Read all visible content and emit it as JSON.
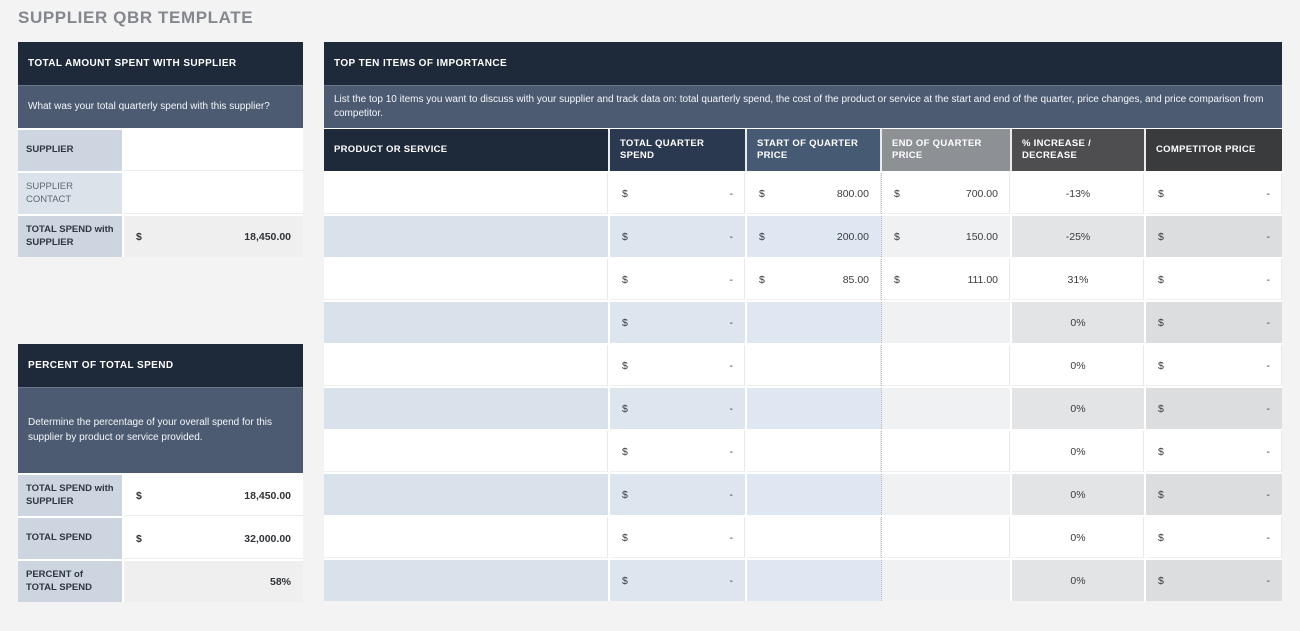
{
  "title": "SUPPLIER QBR TEMPLATE",
  "palette": {
    "header_dark": "#1e2a39",
    "header_navy": "#2b3950",
    "slate_description": "#4d5b72",
    "header_slate": "#475a74",
    "header_gray": "#8d9196",
    "header_darkgray": "#4e4e50",
    "header_charcoal": "#3a3b3d",
    "label_tint": "#cdd6e0",
    "row_blue_tint": "#dde5ef",
    "value_gray": "#efefef"
  },
  "left_top": {
    "header": "TOTAL AMOUNT SPENT WITH SUPPLIER",
    "description": "What was your total quarterly spend with this supplier?",
    "rows": [
      {
        "label": "SUPPLIER",
        "currency": "",
        "value": ""
      },
      {
        "label": "SUPPLIER CONTACT",
        "currency": "",
        "value": ""
      },
      {
        "label": "TOTAL SPEND with SUPPLIER",
        "currency": "$",
        "value": "18,450.00"
      }
    ]
  },
  "left_bottom": {
    "header": "PERCENT OF TOTAL SPEND",
    "description": "Determine the percentage of your overall spend for this supplier by product or service provided.",
    "rows": [
      {
        "label": "TOTAL SPEND with SUPPLIER",
        "currency": "$",
        "value": "18,450.00"
      },
      {
        "label": "TOTAL SPEND",
        "currency": "$",
        "value": "32,000.00"
      },
      {
        "label": "PERCENT of TOTAL SPEND",
        "currency": "",
        "value": "58%"
      }
    ]
  },
  "main_table": {
    "header": "TOP TEN ITEMS OF IMPORTANCE",
    "description": "List the top 10 items you want to discuss with your supplier and track data on: total quarterly spend, the cost of the product or service at the start and end of the quarter, price changes, and price comparison from competitor.",
    "columns": [
      "PRODUCT OR SERVICE",
      "TOTAL QUARTER SPEND",
      "START OF QUARTER PRICE",
      "END OF QUARTER PRICE",
      "% INCREASE / DECREASE",
      "COMPETITOR PRICE"
    ],
    "rows": [
      {
        "product": "",
        "total_cur": "$",
        "total_val": "-",
        "start_cur": "$",
        "start_val": "800.00",
        "end_cur": "$",
        "end_val": "700.00",
        "pct": "-13%",
        "comp_cur": "$",
        "comp_val": "-"
      },
      {
        "product": "",
        "total_cur": "$",
        "total_val": "-",
        "start_cur": "$",
        "start_val": "200.00",
        "end_cur": "$",
        "end_val": "150.00",
        "pct": "-25%",
        "comp_cur": "$",
        "comp_val": "-"
      },
      {
        "product": "",
        "total_cur": "$",
        "total_val": "-",
        "start_cur": "$",
        "start_val": "85.00",
        "end_cur": "$",
        "end_val": "111.00",
        "pct": "31%",
        "comp_cur": "$",
        "comp_val": "-"
      },
      {
        "product": "",
        "total_cur": "$",
        "total_val": "-",
        "start_cur": "",
        "start_val": "",
        "end_cur": "",
        "end_val": "",
        "pct": "0%",
        "comp_cur": "$",
        "comp_val": "-"
      },
      {
        "product": "",
        "total_cur": "$",
        "total_val": "-",
        "start_cur": "",
        "start_val": "",
        "end_cur": "",
        "end_val": "",
        "pct": "0%",
        "comp_cur": "$",
        "comp_val": "-"
      },
      {
        "product": "",
        "total_cur": "$",
        "total_val": "-",
        "start_cur": "",
        "start_val": "",
        "end_cur": "",
        "end_val": "",
        "pct": "0%",
        "comp_cur": "$",
        "comp_val": "-"
      },
      {
        "product": "",
        "total_cur": "$",
        "total_val": "-",
        "start_cur": "",
        "start_val": "",
        "end_cur": "",
        "end_val": "",
        "pct": "0%",
        "comp_cur": "$",
        "comp_val": "-"
      },
      {
        "product": "",
        "total_cur": "$",
        "total_val": "-",
        "start_cur": "",
        "start_val": "",
        "end_cur": "",
        "end_val": "",
        "pct": "0%",
        "comp_cur": "$",
        "comp_val": "-"
      },
      {
        "product": "",
        "total_cur": "$",
        "total_val": "-",
        "start_cur": "",
        "start_val": "",
        "end_cur": "",
        "end_val": "",
        "pct": "0%",
        "comp_cur": "$",
        "comp_val": "-"
      },
      {
        "product": "",
        "total_cur": "$",
        "total_val": "-",
        "start_cur": "",
        "start_val": "",
        "end_cur": "",
        "end_val": "",
        "pct": "0%",
        "comp_cur": "$",
        "comp_val": "-"
      }
    ]
  }
}
